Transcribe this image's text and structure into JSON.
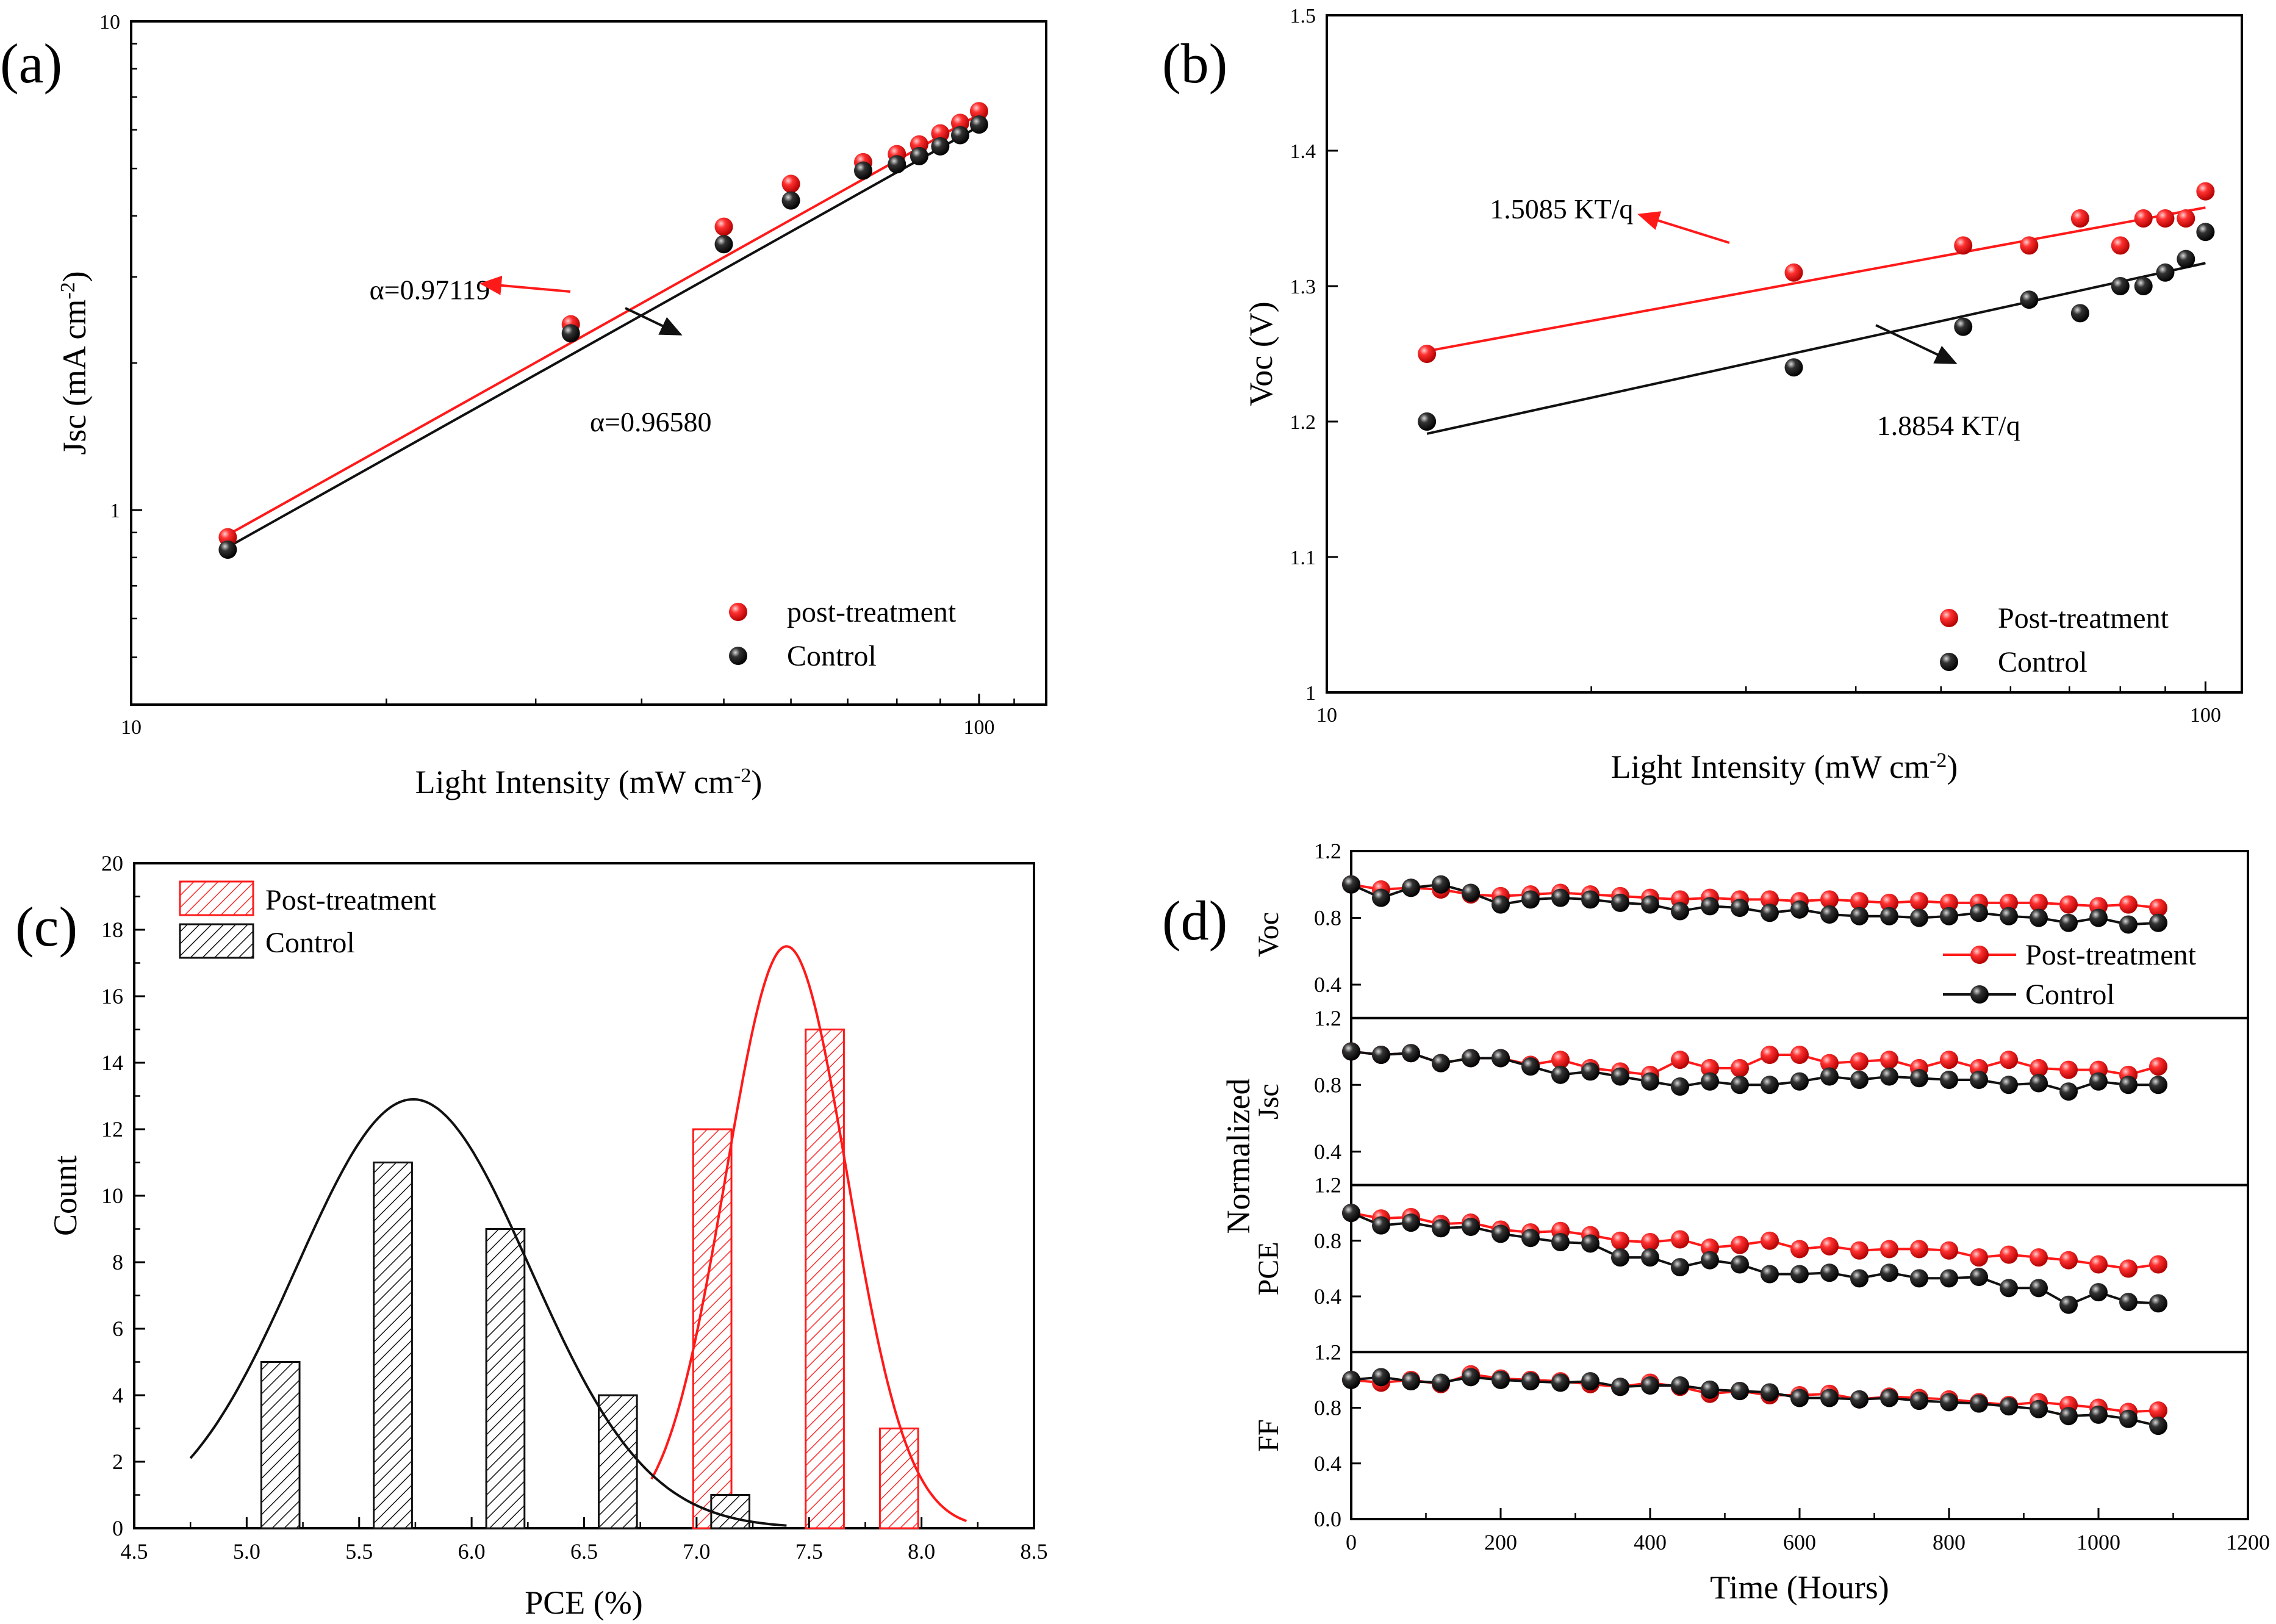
{
  "colors": {
    "red": "#ff1a1a",
    "black": "#111111",
    "axis": "#000000"
  },
  "chart_data": [
    {
      "panel": "a",
      "panel_label": "(a)",
      "type": "scatter",
      "scale": "log-log",
      "xlabel": "Light Intensity (mW cm",
      "xlabel_sup": "-2",
      "xlabel_end": ")",
      "ylabel": "Jsc (mA cm",
      "ylabel_sup": "-2",
      "ylabel_end": ")",
      "xlim": [
        10,
        120
      ],
      "ylim": [
        0.4,
        10
      ],
      "xticks": [
        10,
        100
      ],
      "xtick_labels": [
        "10",
        "100"
      ],
      "yticks": [
        1,
        10
      ],
      "ytick_labels": [
        "1",
        "10"
      ],
      "series": [
        {
          "name": "post-treatment",
          "color": "red",
          "x": [
            13,
            33,
            50,
            60,
            73,
            80,
            85,
            90,
            95,
            100
          ],
          "y": [
            0.88,
            2.4,
            3.8,
            4.65,
            5.15,
            5.35,
            5.6,
            5.9,
            6.2,
            6.55
          ],
          "fit": {
            "x": [
              13,
              100
            ],
            "y": [
              0.89,
              6.45
            ]
          }
        },
        {
          "name": "Control",
          "color": "black",
          "x": [
            13,
            33,
            50,
            60,
            73,
            80,
            85,
            90,
            95,
            100
          ],
          "y": [
            0.83,
            2.3,
            3.5,
            4.3,
            4.95,
            5.1,
            5.3,
            5.55,
            5.85,
            6.15
          ],
          "fit": {
            "x": [
              13,
              100
            ],
            "y": [
              0.84,
              6.1
            ]
          }
        }
      ],
      "annotations": [
        {
          "text": "α=0.97119",
          "color": "red",
          "x": 22.5,
          "y": 2.7,
          "arrow_from": [
            33,
            2.45
          ],
          "arrow_to": [
            24,
            2.65
          ]
        },
        {
          "text": "α=0.96580",
          "color": "black",
          "x": 41,
          "y": 1.45,
          "arrow_from": [
            34,
            2.1
          ],
          "arrow_to": [
            40,
            1.7
          ]
        }
      ],
      "legend": {
        "position": "bottom-right",
        "entries": [
          "post-treatment",
          "Control"
        ]
      }
    },
    {
      "panel": "b",
      "panel_label": "(b)",
      "type": "scatter",
      "scale": "semilog-x",
      "xlabel": "Light Intensity (mW cm",
      "xlabel_sup": "-2",
      "xlabel_end": ")",
      "ylabel": "Voc (V)",
      "xlim": [
        10,
        110
      ],
      "ylim": [
        1.0,
        1.5
      ],
      "xticks": [
        10,
        100
      ],
      "xtick_labels": [
        "10",
        "100"
      ],
      "yticks": [
        1.0,
        1.1,
        1.2,
        1.3,
        1.4,
        1.5
      ],
      "ytick_labels": [
        "1",
        "1.1",
        "1.2",
        "1.3",
        "1.4",
        "1.5"
      ],
      "series": [
        {
          "name": "Post-treatment",
          "color": "red",
          "x": [
            13,
            34,
            53,
            63,
            72,
            80,
            85,
            90,
            95,
            100
          ],
          "y": [
            1.25,
            1.31,
            1.33,
            1.33,
            1.35,
            1.33,
            1.35,
            1.35,
            1.35,
            1.37
          ],
          "fit": {
            "x": [
              13,
              100
            ],
            "y": [
              1.252,
              1.358
            ]
          }
        },
        {
          "name": "Control",
          "color": "black",
          "x": [
            13,
            34,
            53,
            63,
            72,
            80,
            85,
            90,
            95,
            100
          ],
          "y": [
            1.2,
            1.24,
            1.27,
            1.29,
            1.28,
            1.3,
            1.3,
            1.31,
            1.32,
            1.34
          ],
          "fit": {
            "x": [
              13,
              100
            ],
            "y": [
              1.191,
              1.317
            ]
          }
        }
      ],
      "annotations": [
        {
          "text": "1.5085 KT/q",
          "color": "red",
          "x": 18.5,
          "y": 1.35
        },
        {
          "text": "1.8854 KT/q",
          "color": "black",
          "x": 51,
          "y": 1.19
        }
      ],
      "legend": {
        "position": "bottom-right",
        "entries": [
          "Post-treatment",
          "Control"
        ]
      }
    },
    {
      "panel": "c",
      "panel_label": "(c)",
      "type": "bar",
      "subtype": "histogram-with-gaussian-fit",
      "xlabel": "PCE (%)",
      "ylabel": "Count",
      "xlim": [
        4.5,
        8.5
      ],
      "ylim": [
        0,
        20
      ],
      "xticks": [
        4.5,
        5.0,
        5.5,
        6.0,
        6.5,
        7.0,
        7.5,
        8.0,
        8.5
      ],
      "xtick_labels": [
        "4.5",
        "5.0",
        "5.5",
        "6.0",
        "6.5",
        "7.0",
        "7.5",
        "8.0",
        "8.5"
      ],
      "yticks": [
        0,
        2,
        4,
        6,
        8,
        10,
        12,
        14,
        16,
        18,
        20
      ],
      "ytick_labels": [
        "0",
        "2",
        "4",
        "6",
        "8",
        "10",
        "12",
        "14",
        "16",
        "18",
        "20"
      ],
      "bin_width": 0.17,
      "series": [
        {
          "name": "Post-treatment",
          "color": "red",
          "bins": [
            7.07,
            7.57,
            7.9
          ],
          "values": [
            12,
            15,
            3
          ],
          "fit": {
            "mean": 7.4,
            "sigma": 0.27,
            "amplitude": 17.5,
            "xrange": [
              6.8,
              8.2
            ]
          }
        },
        {
          "name": "Control",
          "color": "black",
          "bins": [
            5.15,
            5.65,
            6.15,
            6.65,
            7.15
          ],
          "values": [
            5,
            11,
            9,
            4,
            1
          ],
          "fit": {
            "mean": 5.74,
            "sigma": 0.52,
            "amplitude": 12.9,
            "xrange": [
              4.75,
              7.4
            ]
          }
        }
      ],
      "legend": {
        "position": "top-left",
        "entries": [
          "Post-treatment",
          "Control"
        ]
      }
    },
    {
      "panel": "d",
      "panel_label": "(d)",
      "type": "line",
      "subtype": "stacked-normalized-stability",
      "xlabel": "Time (Hours)",
      "ylabel": "Normalized",
      "xlim": [
        0,
        1200
      ],
      "xticks": [
        0,
        200,
        400,
        600,
        800,
        1000,
        1200
      ],
      "xtick_labels": [
        "0",
        "200",
        "400",
        "600",
        "800",
        "1000",
        "1200"
      ],
      "x": [
        0,
        40,
        80,
        120,
        160,
        200,
        240,
        280,
        320,
        360,
        400,
        440,
        480,
        520,
        560,
        600,
        640,
        680,
        720,
        760,
        800,
        840,
        880,
        920,
        960,
        1000,
        1040,
        1080
      ],
      "subplots": [
        {
          "ylabel": "Voc",
          "ylim": [
            0.2,
            1.2
          ],
          "yticks": [
            0.4,
            0.8,
            1.2
          ],
          "ytick_labels": [
            "0.4",
            "0.8",
            "1.2"
          ],
          "series": [
            {
              "name": "Post-treatment",
              "color": "red",
              "values": [
                1.0,
                0.97,
                0.98,
                0.97,
                0.94,
                0.93,
                0.94,
                0.95,
                0.94,
                0.93,
                0.92,
                0.91,
                0.92,
                0.91,
                0.91,
                0.9,
                0.91,
                0.9,
                0.89,
                0.9,
                0.89,
                0.89,
                0.89,
                0.89,
                0.88,
                0.87,
                0.88,
                0.86
              ]
            },
            {
              "name": "Control",
              "color": "black",
              "values": [
                1.0,
                0.92,
                0.98,
                1.0,
                0.95,
                0.88,
                0.91,
                0.92,
                0.91,
                0.89,
                0.88,
                0.84,
                0.87,
                0.86,
                0.83,
                0.85,
                0.82,
                0.81,
                0.81,
                0.8,
                0.81,
                0.83,
                0.81,
                0.8,
                0.77,
                0.8,
                0.76,
                0.77
              ]
            }
          ]
        },
        {
          "ylabel": "Jsc",
          "ylim": [
            0.2,
            1.2
          ],
          "yticks": [
            0.4,
            0.8,
            1.2
          ],
          "ytick_labels": [
            "0.4",
            "0.8",
            "1.2"
          ],
          "series": [
            {
              "name": "Post-treatment",
              "color": "red",
              "values": [
                1.0,
                0.98,
                0.99,
                0.93,
                0.96,
                0.96,
                0.92,
                0.95,
                0.9,
                0.88,
                0.86,
                0.95,
                0.9,
                0.9,
                0.98,
                0.98,
                0.93,
                0.94,
                0.95,
                0.9,
                0.95,
                0.9,
                0.95,
                0.9,
                0.89,
                0.89,
                0.86,
                0.91
              ]
            },
            {
              "name": "Control",
              "color": "black",
              "values": [
                1.0,
                0.98,
                0.99,
                0.93,
                0.96,
                0.96,
                0.91,
                0.86,
                0.88,
                0.85,
                0.82,
                0.79,
                0.82,
                0.8,
                0.8,
                0.82,
                0.85,
                0.83,
                0.85,
                0.84,
                0.83,
                0.83,
                0.8,
                0.81,
                0.76,
                0.82,
                0.8,
                0.8
              ]
            }
          ]
        },
        {
          "ylabel": "PCE",
          "ylim": [
            0.0,
            1.2
          ],
          "yticks": [
            0.4,
            0.8,
            1.2
          ],
          "ytick_labels": [
            "0.4",
            "0.8",
            "1.2"
          ],
          "series": [
            {
              "name": "Post-treatment",
              "color": "red",
              "values": [
                1.0,
                0.96,
                0.97,
                0.92,
                0.93,
                0.88,
                0.86,
                0.87,
                0.84,
                0.8,
                0.79,
                0.81,
                0.75,
                0.77,
                0.8,
                0.74,
                0.76,
                0.73,
                0.74,
                0.74,
                0.73,
                0.68,
                0.7,
                0.68,
                0.66,
                0.63,
                0.6,
                0.63
              ]
            },
            {
              "name": "Control",
              "color": "black",
              "values": [
                1.0,
                0.91,
                0.93,
                0.89,
                0.9,
                0.85,
                0.82,
                0.79,
                0.78,
                0.68,
                0.68,
                0.61,
                0.66,
                0.63,
                0.56,
                0.56,
                0.57,
                0.53,
                0.57,
                0.53,
                0.53,
                0.54,
                0.46,
                0.46,
                0.34,
                0.43,
                0.36,
                0.35
              ]
            }
          ]
        },
        {
          "ylabel": "FF",
          "ylim": [
            0.0,
            1.2
          ],
          "yticks": [
            0.0,
            0.4,
            0.8,
            1.2
          ],
          "ytick_labels": [
            "0.0",
            "0.4",
            "0.8",
            "1.2"
          ],
          "series": [
            {
              "name": "Post-treatment",
              "color": "red",
              "values": [
                1.0,
                0.98,
                1.0,
                0.97,
                1.04,
                1.01,
                1.0,
                0.99,
                0.97,
                0.95,
                0.98,
                0.95,
                0.9,
                0.92,
                0.89,
                0.89,
                0.9,
                0.86,
                0.88,
                0.87,
                0.86,
                0.84,
                0.82,
                0.84,
                0.82,
                0.8,
                0.77,
                0.78
              ]
            },
            {
              "name": "Control",
              "color": "black",
              "values": [
                1.0,
                1.02,
                0.99,
                0.98,
                1.02,
                1.0,
                0.99,
                0.98,
                0.99,
                0.95,
                0.96,
                0.96,
                0.93,
                0.92,
                0.91,
                0.87,
                0.87,
                0.86,
                0.87,
                0.85,
                0.84,
                0.83,
                0.81,
                0.79,
                0.74,
                0.75,
                0.72,
                0.67
              ]
            }
          ]
        }
      ],
      "legend": {
        "position": "top-right",
        "entries": [
          "Post-treatment",
          "Control"
        ]
      }
    }
  ]
}
